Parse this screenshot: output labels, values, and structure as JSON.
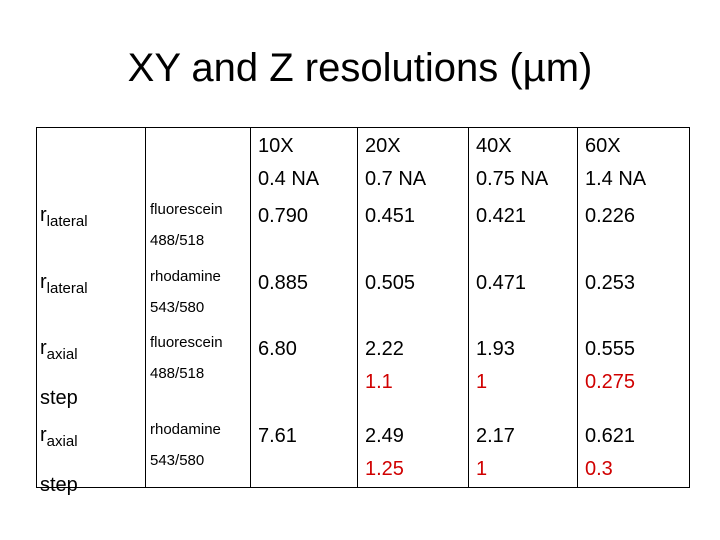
{
  "title": "XY and Z resolutions (µm)",
  "table": {
    "header": [
      [
        "10X",
        "0.4 NA"
      ],
      [
        "20X",
        "0.7 NA"
      ],
      [
        "40X",
        "0.75 NA"
      ],
      [
        "60X",
        "1.4 NA"
      ]
    ],
    "rows": [
      {
        "label": [
          "r",
          "lateral"
        ],
        "dye": [
          "fluorescein",
          "488/518"
        ],
        "cells": [
          [
            "0.790"
          ],
          [
            "0.451"
          ],
          [
            "0.421"
          ],
          [
            "0.226"
          ]
        ]
      },
      {
        "label": [
          "r",
          "lateral"
        ],
        "dye": [
          "rhodamine",
          "543/580"
        ],
        "cells": [
          [
            "0.885"
          ],
          [
            "0.505"
          ],
          [
            "0.471"
          ],
          [
            "0.253"
          ]
        ]
      },
      {
        "label": [
          "r",
          "axial",
          "step"
        ],
        "dye": [
          "fluorescein",
          "488/518"
        ],
        "cells": [
          [
            "6.80"
          ],
          [
            "2.22",
            "1.1"
          ],
          [
            "1.93",
            "1"
          ],
          [
            "0.555",
            "0.275"
          ]
        ]
      },
      {
        "label": [
          "r",
          "axial",
          "step"
        ],
        "dye": [
          "rhodamine",
          "543/580"
        ],
        "cells": [
          [
            "7.61"
          ],
          [
            "2.49",
            "1.25"
          ],
          [
            "2.17",
            "1"
          ],
          [
            "0.621",
            "0.3"
          ]
        ]
      }
    ]
  }
}
